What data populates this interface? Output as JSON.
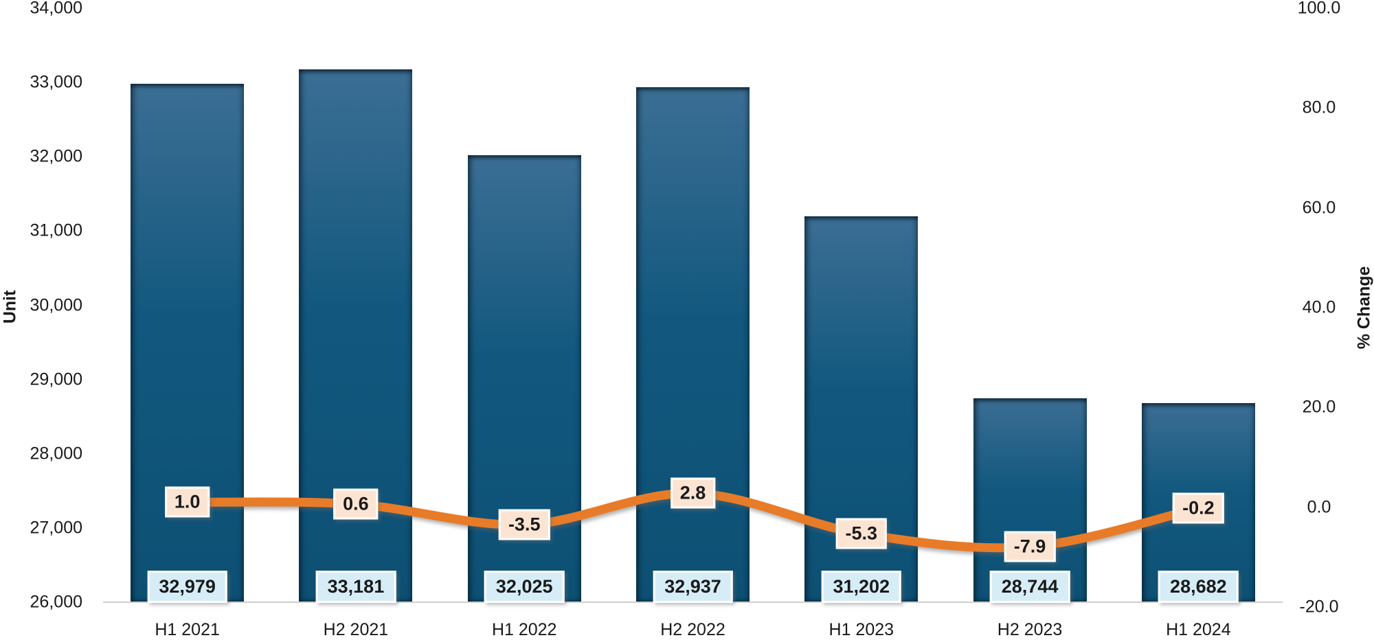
{
  "chart_data": {
    "type": "combo-bar-line",
    "title": "",
    "categories": [
      "H1 2021",
      "H2 2021",
      "H1 2022",
      "H2 2022",
      "H1 2023",
      "H2 2023",
      "H1 2024"
    ],
    "series": [
      {
        "name": "Unit",
        "type": "bar",
        "axis": "left",
        "values": [
          32979,
          33181,
          32025,
          32937,
          31202,
          28744,
          28682
        ],
        "labels": [
          "32,979",
          "33,181",
          "32,025",
          "32,937",
          "31,202",
          "28,744",
          "28,682"
        ]
      },
      {
        "name": "% Change",
        "type": "line",
        "axis": "right",
        "values": [
          1.0,
          0.6,
          -3.5,
          2.8,
          -5.3,
          -7.9,
          -0.2
        ],
        "labels": [
          "1.0",
          "0.6",
          "-3.5",
          "2.8",
          "-5.3",
          "-7.9",
          "-0.2"
        ]
      }
    ],
    "left_axis": {
      "title": "Unit",
      "min": 26000,
      "max": 34000,
      "step": 1000,
      "tick_labels": [
        "26,000",
        "27,000",
        "28,000",
        "29,000",
        "30,000",
        "31,000",
        "32,000",
        "33,000",
        "34,000"
      ]
    },
    "right_axis": {
      "title": "% Change",
      "min": -20.0,
      "max": 100.0,
      "step": 20.0,
      "tick_labels": [
        "-20.0",
        "0.0",
        "20.0",
        "40.0",
        "60.0",
        "80.0",
        "100.0"
      ]
    },
    "grid": false,
    "legend": "none",
    "colors": {
      "bar_top": "#3c6e94",
      "bar_mid": "#12587e",
      "bar_bottom": "#0d5074",
      "line": "#e87b28",
      "bar_label_bg": "#d6edf7",
      "line_label_bg": "#fce4d3",
      "label_border": "#ffffff",
      "axis_line": "#cfcfcf",
      "text": "#1a1a1a"
    }
  }
}
